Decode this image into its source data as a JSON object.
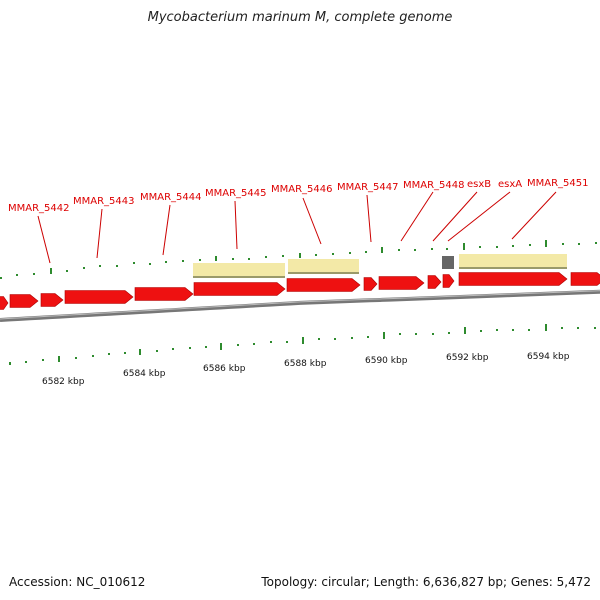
{
  "title": "Mycobacterium marinum M, complete genome",
  "colors": {
    "gene": "#ee1111",
    "gene_border": "#aa0000",
    "label": "#dd0000",
    "leader": "#cc0000",
    "ticks": "#2e8b2e",
    "backbone": "#777777",
    "backbone_light": "#bbbbbb",
    "feature": "#f3e9a7",
    "feature_border": "#9a9a6a",
    "gray_feature": "#666666",
    "scale_text": "#111111"
  },
  "genes": [
    {
      "name": "MMAR_5442",
      "color": "red"
    },
    {
      "name": "MMAR_5443",
      "color": "red"
    },
    {
      "name": "MMAR_5444",
      "color": "red"
    },
    {
      "name": "MMAR_5445",
      "color": "red"
    },
    {
      "name": "MMAR_5446",
      "color": "red"
    },
    {
      "name": "MMAR_5447",
      "color": "red"
    },
    {
      "name": "MMAR_5448",
      "color": "red"
    },
    {
      "name": "esxB",
      "color": "red"
    },
    {
      "name": "esxA",
      "color": "red"
    },
    {
      "name": "MMAR_5451",
      "color": "red"
    }
  ],
  "scale_labels": [
    "6582 kbp",
    "6584 kbp",
    "6586 kbp",
    "6588 kbp",
    "6590 kbp",
    "6592 kbp",
    "6594 kbp"
  ],
  "footer": {
    "accession": "Accession: NC_010612",
    "summary": "Topology: circular; Length: 6,636,827 bp; Genes: 5,472"
  }
}
